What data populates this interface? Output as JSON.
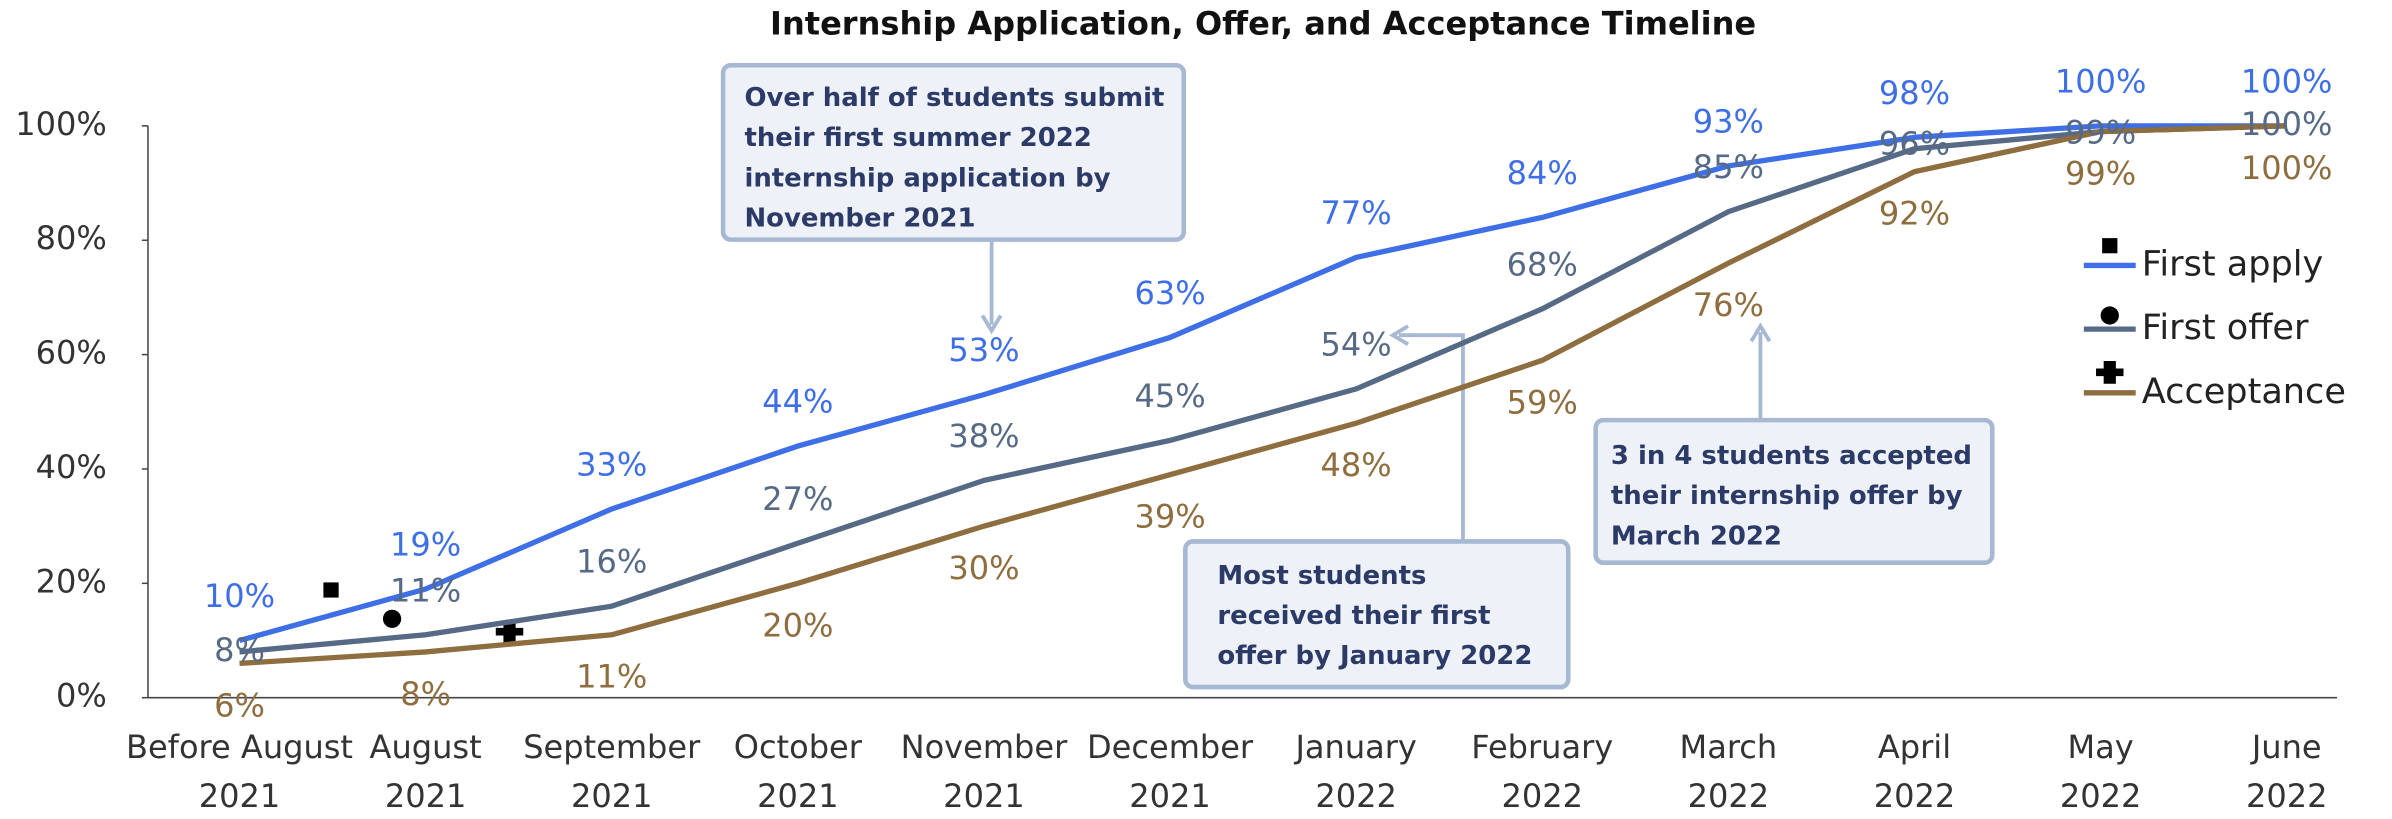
{
  "chart_data": {
    "type": "line",
    "title": "Internship Application, Offer, and Acceptance Timeline",
    "categories": [
      [
        "Before August",
        "2021"
      ],
      [
        "August",
        "2021"
      ],
      [
        "September",
        "2021"
      ],
      [
        "October",
        "2021"
      ],
      [
        "November",
        "2021"
      ],
      [
        "December",
        "2021"
      ],
      [
        "January",
        "2022"
      ],
      [
        "February",
        "2022"
      ],
      [
        "March",
        "2022"
      ],
      [
        "April",
        "2022"
      ],
      [
        "May",
        "2022"
      ],
      [
        "June",
        "2022"
      ]
    ],
    "series": [
      {
        "name": "First apply",
        "color": "#3e6fe6",
        "values": [
          10,
          19,
          33,
          44,
          53,
          63,
          77,
          84,
          93,
          98,
          100,
          100
        ],
        "value_labels": [
          "10%",
          "19%",
          "33%",
          "44%",
          "53%",
          "63%",
          "77%",
          "84%",
          "93%",
          "98%",
          "100%",
          "100%"
        ]
      },
      {
        "name": "First offer",
        "color": "#566a86",
        "values": [
          8,
          11,
          16,
          27,
          38,
          45,
          54,
          68,
          85,
          96,
          99,
          100
        ],
        "value_labels": [
          "8%",
          "11%",
          "16%",
          "27%",
          "38%",
          "45%",
          "54%",
          "68%",
          "85%",
          "96%",
          "99%",
          "100%"
        ]
      },
      {
        "name": "Acceptance",
        "color": "#8e6d3e",
        "values": [
          6,
          8,
          11,
          20,
          30,
          39,
          48,
          59,
          76,
          92,
          99,
          100
        ],
        "value_labels": [
          "6%",
          "8%",
          "11%",
          "20%",
          "30%",
          "39%",
          "48%",
          "59%",
          "76%",
          "92%",
          "99%",
          "100%"
        ]
      }
    ],
    "ylim": [
      0,
      100
    ],
    "yticks": [
      {
        "value": 0,
        "label": "0%"
      },
      {
        "value": 20,
        "label": "20%"
      },
      {
        "value": 40,
        "label": "40%"
      },
      {
        "value": 60,
        "label": "60%"
      },
      {
        "value": 80,
        "label": "80%"
      },
      {
        "value": 100,
        "label": "100%"
      }
    ],
    "legend": "right",
    "annotations": [
      [
        "Over half of students submit",
        "their first summer 2022",
        "internship application by",
        "November 2021"
      ],
      [
        "Most students",
        "received their first",
        "offer by January 2022"
      ],
      [
        "3 in 4 students accepted",
        "their internship offer by",
        "March 2022"
      ]
    ]
  }
}
